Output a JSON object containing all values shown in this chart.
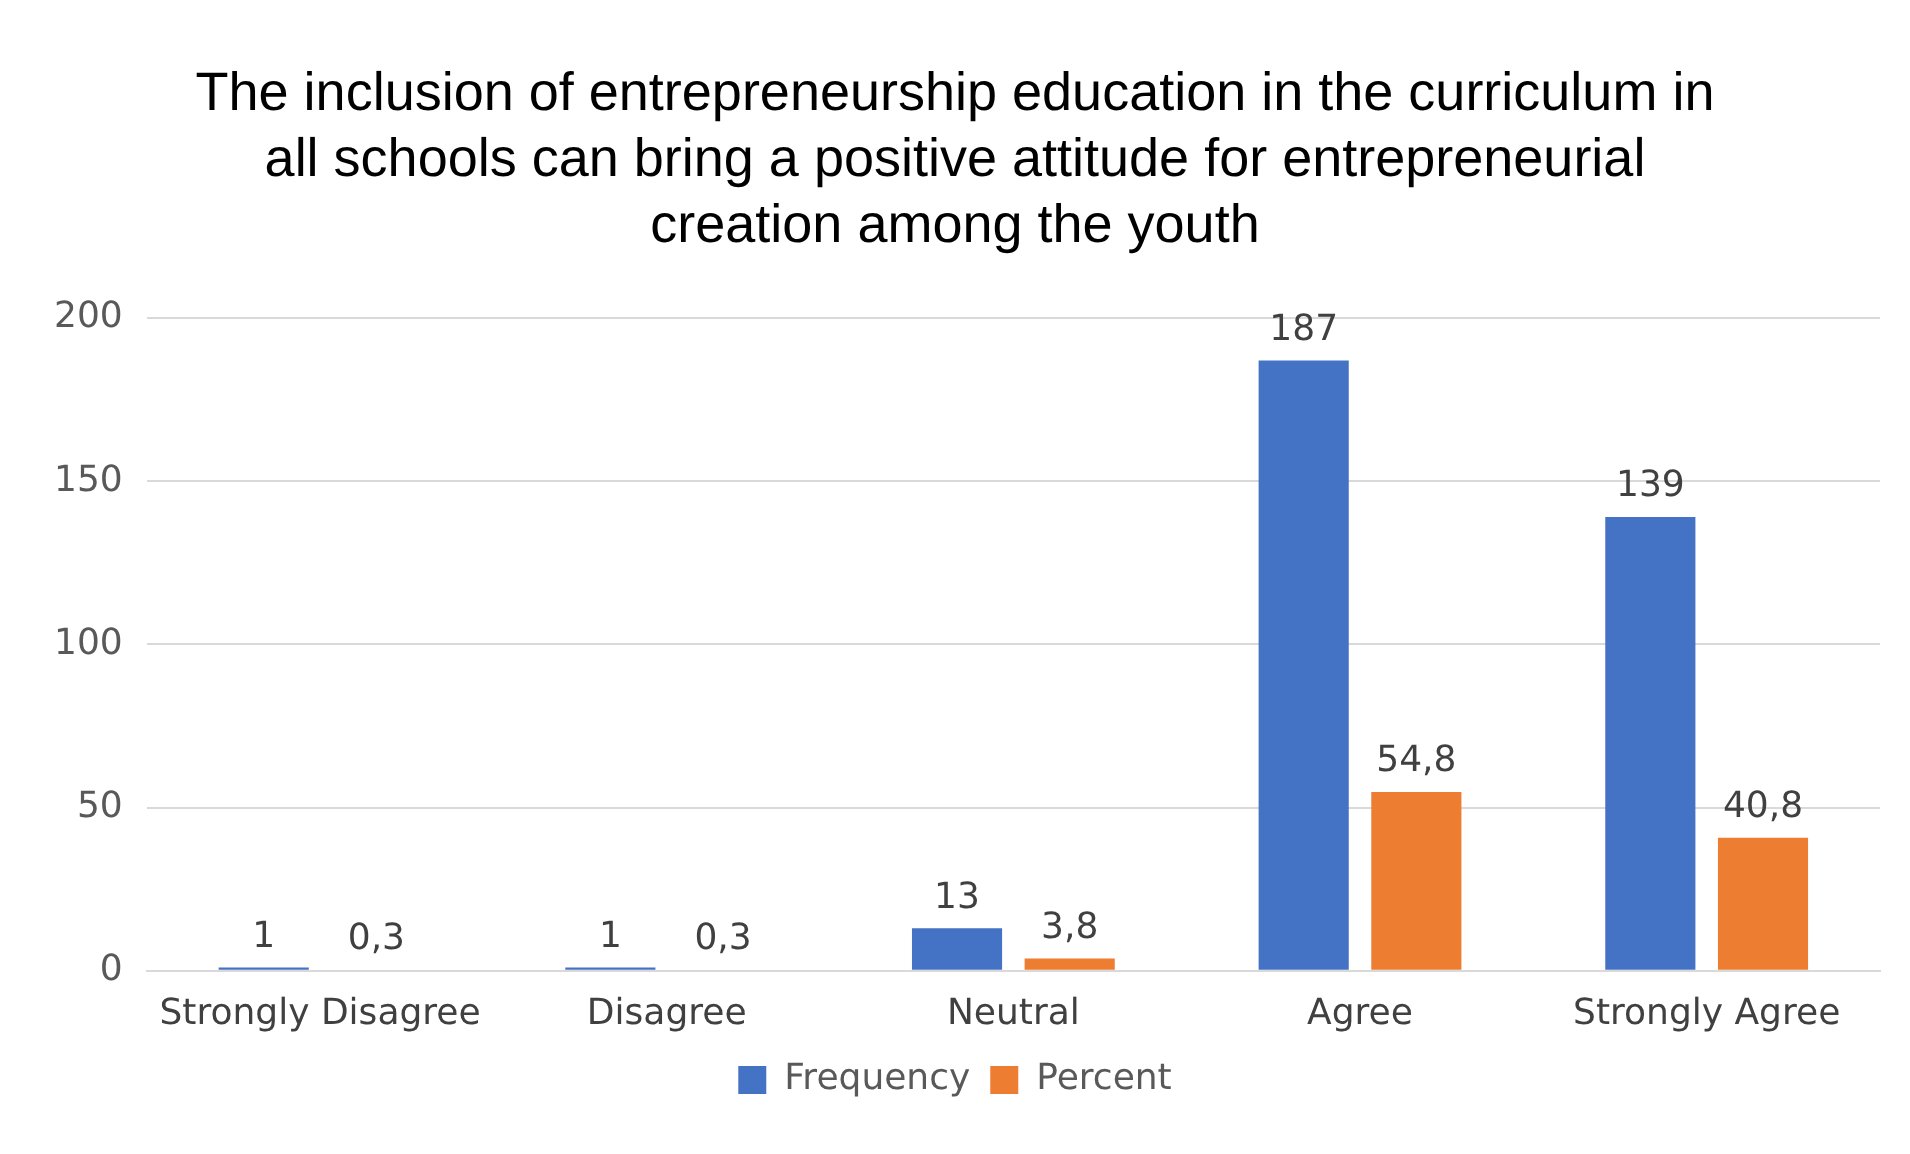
{
  "chart_data": {
    "type": "bar",
    "title": "The inclusion of entrepreneurship education in the curriculum in all schools can bring a positive attitude for entrepreneurial creation among the youth",
    "categories": [
      "Strongly Disagree",
      "Disagree",
      "Neutral",
      "Agree",
      "Strongly Agree"
    ],
    "series": [
      {
        "name": "Frequency",
        "color": "#4472c4",
        "values": [
          1,
          1,
          13,
          187,
          139
        ],
        "value_labels": [
          "1",
          "1",
          "13",
          "187",
          "139"
        ]
      },
      {
        "name": "Percent",
        "color": "#ed7d31",
        "values": [
          0.3,
          0.3,
          3.8,
          54.8,
          40.8
        ],
        "value_labels": [
          "0,3",
          "0,3",
          "3,8",
          "54,8",
          "40,8"
        ]
      }
    ],
    "ylim": [
      0,
      200
    ],
    "yticks": [
      0,
      50,
      100,
      150,
      200
    ],
    "grid": "y",
    "legend": "bottom"
  }
}
